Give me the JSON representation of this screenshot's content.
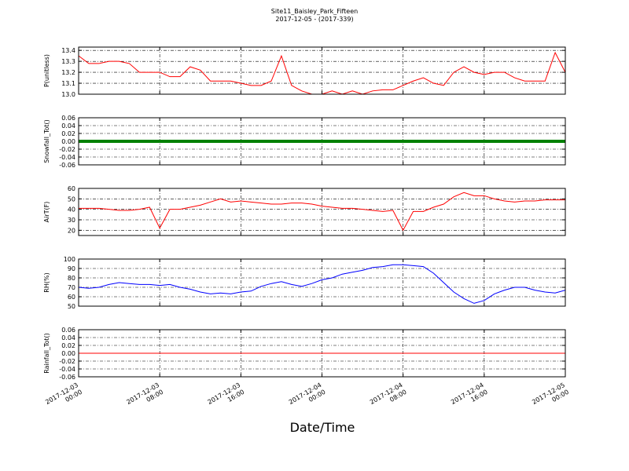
{
  "title": "Site11_Baisley_Park_Fifteen",
  "subtitle": "2017-12-05 - (2017-339)",
  "xlabel": "Date/Time",
  "chart_data": [
    {
      "type": "line",
      "ylabel": "P(unitless)",
      "color": "#ff0000",
      "linewidth": 1,
      "grid": true,
      "ylim": [
        13.0,
        13.43
      ],
      "yticks": [
        {
          "value": 13.0,
          "label": "13.0"
        },
        13.1,
        13.2,
        13.3,
        13.4
      ],
      "x": [
        "2017-12-03 00:00",
        "2017-12-03 01:00",
        "2017-12-03 02:00",
        "2017-12-03 03:00",
        "2017-12-03 04:00",
        "2017-12-03 05:00",
        "2017-12-03 06:00",
        "2017-12-03 07:00",
        "2017-12-03 08:00",
        "2017-12-03 09:00",
        "2017-12-03 10:00",
        "2017-12-03 11:00",
        "2017-12-03 12:00",
        "2017-12-03 13:00",
        "2017-12-03 14:00",
        "2017-12-03 15:00",
        "2017-12-03 16:00",
        "2017-12-03 17:00",
        "2017-12-03 18:00",
        "2017-12-03 19:00",
        "2017-12-03 20:00",
        "2017-12-03 21:00",
        "2017-12-03 22:00",
        "2017-12-03 23:00",
        "2017-12-04 00:00",
        "2017-12-04 01:00",
        "2017-12-04 02:00",
        "2017-12-04 03:00",
        "2017-12-04 04:00",
        "2017-12-04 05:00",
        "2017-12-04 06:00",
        "2017-12-04 07:00",
        "2017-12-04 08:00",
        "2017-12-04 09:00",
        "2017-12-04 10:00",
        "2017-12-04 11:00",
        "2017-12-04 12:00",
        "2017-12-04 13:00",
        "2017-12-04 14:00",
        "2017-12-04 15:00",
        "2017-12-04 16:00",
        "2017-12-04 17:00",
        "2017-12-04 18:00",
        "2017-12-04 19:00",
        "2017-12-04 20:00",
        "2017-12-04 21:00",
        "2017-12-04 22:00",
        "2017-12-04 23:00",
        "2017-12-05 00:00"
      ],
      "values": [
        13.35,
        13.28,
        13.28,
        13.3,
        13.3,
        13.28,
        13.2,
        13.2,
        13.2,
        13.16,
        13.16,
        13.25,
        13.22,
        13.12,
        13.12,
        13.12,
        13.1,
        13.08,
        13.08,
        13.12,
        13.35,
        13.08,
        13.03,
        13.0,
        13.0,
        13.03,
        13.0,
        13.03,
        13.0,
        13.03,
        13.04,
        13.04,
        13.08,
        13.12,
        13.15,
        13.1,
        13.08,
        13.2,
        13.25,
        13.2,
        13.18,
        13.2,
        13.2,
        13.15,
        13.12,
        13.12,
        13.12,
        13.38,
        13.2
      ]
    },
    {
      "type": "line",
      "ylabel": "Snowfall_Tot()",
      "color": "#008000",
      "linewidth": 4,
      "grid": true,
      "ylim": [
        -0.06,
        0.06
      ],
      "yticks": [
        -0.06,
        -0.04,
        -0.02,
        {
          "value": 0,
          "label": "0.00"
        },
        0.02,
        0.04,
        0.06
      ],
      "x": [
        "2017-12-03 00:00",
        "2017-12-03 01:00",
        "2017-12-03 02:00",
        "2017-12-03 03:00",
        "2017-12-03 04:00",
        "2017-12-03 05:00",
        "2017-12-03 06:00",
        "2017-12-03 07:00",
        "2017-12-03 08:00",
        "2017-12-03 09:00",
        "2017-12-03 10:00",
        "2017-12-03 11:00",
        "2017-12-03 12:00",
        "2017-12-03 13:00",
        "2017-12-03 14:00",
        "2017-12-03 15:00",
        "2017-12-03 16:00",
        "2017-12-03 17:00",
        "2017-12-03 18:00",
        "2017-12-03 19:00",
        "2017-12-03 20:00",
        "2017-12-03 21:00",
        "2017-12-03 22:00",
        "2017-12-03 23:00",
        "2017-12-04 00:00",
        "2017-12-04 01:00",
        "2017-12-04 02:00",
        "2017-12-04 03:00",
        "2017-12-04 04:00",
        "2017-12-04 05:00",
        "2017-12-04 06:00",
        "2017-12-04 07:00",
        "2017-12-04 08:00",
        "2017-12-04 09:00",
        "2017-12-04 10:00",
        "2017-12-04 11:00",
        "2017-12-04 12:00",
        "2017-12-04 13:00",
        "2017-12-04 14:00",
        "2017-12-04 15:00",
        "2017-12-04 16:00",
        "2017-12-04 17:00",
        "2017-12-04 18:00",
        "2017-12-04 19:00",
        "2017-12-04 20:00",
        "2017-12-04 21:00",
        "2017-12-04 22:00",
        "2017-12-04 23:00",
        "2017-12-05 00:00"
      ],
      "values": [
        0,
        0,
        0,
        0,
        0,
        0,
        0,
        0,
        0,
        0,
        0,
        0,
        0,
        0,
        0,
        0,
        0,
        0,
        0,
        0,
        0,
        0,
        0,
        0,
        0,
        0,
        0,
        0,
        0,
        0,
        0,
        0,
        0,
        0,
        0,
        0,
        0,
        0,
        0,
        0,
        0,
        0,
        0,
        0,
        0,
        0,
        0,
        0,
        0
      ]
    },
    {
      "type": "line",
      "ylabel": "AirT(F)",
      "color": "#ff0000",
      "linewidth": 1,
      "grid": true,
      "ylim": [
        15,
        60
      ],
      "yticks": [
        20,
        30,
        40,
        50,
        60
      ],
      "x": [
        "2017-12-03 00:00",
        "2017-12-03 01:00",
        "2017-12-03 02:00",
        "2017-12-03 03:00",
        "2017-12-03 04:00",
        "2017-12-03 05:00",
        "2017-12-03 06:00",
        "2017-12-03 07:00",
        "2017-12-03 08:00",
        "2017-12-03 09:00",
        "2017-12-03 10:00",
        "2017-12-03 11:00",
        "2017-12-03 12:00",
        "2017-12-03 13:00",
        "2017-12-03 14:00",
        "2017-12-03 15:00",
        "2017-12-03 16:00",
        "2017-12-03 17:00",
        "2017-12-03 18:00",
        "2017-12-03 19:00",
        "2017-12-03 20:00",
        "2017-12-03 21:00",
        "2017-12-03 22:00",
        "2017-12-03 23:00",
        "2017-12-04 00:00",
        "2017-12-04 01:00",
        "2017-12-04 02:00",
        "2017-12-04 03:00",
        "2017-12-04 04:00",
        "2017-12-04 05:00",
        "2017-12-04 06:00",
        "2017-12-04 07:00",
        "2017-12-04 08:00",
        "2017-12-04 09:00",
        "2017-12-04 10:00",
        "2017-12-04 11:00",
        "2017-12-04 12:00",
        "2017-12-04 13:00",
        "2017-12-04 14:00",
        "2017-12-04 15:00",
        "2017-12-04 16:00",
        "2017-12-04 17:00",
        "2017-12-04 18:00",
        "2017-12-04 19:00",
        "2017-12-04 20:00",
        "2017-12-04 21:00",
        "2017-12-04 22:00",
        "2017-12-04 23:00",
        "2017-12-05 00:00"
      ],
      "values": [
        41,
        41,
        41,
        40,
        39,
        39,
        40,
        42,
        22,
        40,
        40,
        42,
        44,
        47,
        50,
        47,
        48,
        47,
        46,
        45,
        45,
        46,
        46,
        45,
        43,
        42,
        41,
        41,
        40,
        39,
        38,
        39,
        20,
        38,
        38,
        42,
        45,
        52,
        56,
        53,
        53,
        50,
        48,
        47,
        48,
        48,
        49,
        49,
        49
      ]
    },
    {
      "type": "line",
      "ylabel": "RH(%)",
      "color": "#0000ff",
      "linewidth": 1,
      "grid": true,
      "ylim": [
        50,
        100
      ],
      "yticks": [
        50,
        60,
        70,
        80,
        90,
        100
      ],
      "x": [
        "2017-12-03 00:00",
        "2017-12-03 01:00",
        "2017-12-03 02:00",
        "2017-12-03 03:00",
        "2017-12-03 04:00",
        "2017-12-03 05:00",
        "2017-12-03 06:00",
        "2017-12-03 07:00",
        "2017-12-03 08:00",
        "2017-12-03 09:00",
        "2017-12-03 10:00",
        "2017-12-03 11:00",
        "2017-12-03 12:00",
        "2017-12-03 13:00",
        "2017-12-03 14:00",
        "2017-12-03 15:00",
        "2017-12-03 16:00",
        "2017-12-03 17:00",
        "2017-12-03 18:00",
        "2017-12-03 19:00",
        "2017-12-03 20:00",
        "2017-12-03 21:00",
        "2017-12-03 22:00",
        "2017-12-03 23:00",
        "2017-12-04 00:00",
        "2017-12-04 01:00",
        "2017-12-04 02:00",
        "2017-12-04 03:00",
        "2017-12-04 04:00",
        "2017-12-04 05:00",
        "2017-12-04 06:00",
        "2017-12-04 07:00",
        "2017-12-04 08:00",
        "2017-12-04 09:00",
        "2017-12-04 10:00",
        "2017-12-04 11:00",
        "2017-12-04 12:00",
        "2017-12-04 13:00",
        "2017-12-04 14:00",
        "2017-12-04 15:00",
        "2017-12-04 16:00",
        "2017-12-04 17:00",
        "2017-12-04 18:00",
        "2017-12-04 19:00",
        "2017-12-04 20:00",
        "2017-12-04 21:00",
        "2017-12-04 22:00",
        "2017-12-04 23:00",
        "2017-12-05 00:00"
      ],
      "values": [
        70,
        69,
        70,
        73,
        75,
        74,
        73,
        73,
        72,
        73,
        70,
        68,
        65,
        63,
        64,
        63,
        65,
        66,
        71,
        74,
        76,
        73,
        71,
        74,
        78,
        80,
        84,
        86,
        88,
        91,
        92,
        94,
        94,
        93,
        92,
        85,
        75,
        65,
        58,
        53,
        56,
        63,
        67,
        70,
        70,
        67,
        65,
        64,
        67
      ]
    },
    {
      "type": "line",
      "ylabel": "Rainfall_Tot()",
      "color": "#ff0000",
      "linewidth": 1,
      "grid": true,
      "ylim": [
        -0.06,
        0.06
      ],
      "yticks": [
        -0.06,
        -0.04,
        -0.02,
        {
          "value": 0,
          "label": "0.00"
        },
        0.02,
        0.04,
        0.06
      ],
      "xlim": [
        "2017-12-03 00:00",
        "2017-12-05 00:00"
      ],
      "xticks": [
        "2017-12-03 00:00",
        "2017-12-03 08:00",
        "2017-12-03 16:00",
        "2017-12-04 00:00",
        "2017-12-04 08:00",
        "2017-12-04 16:00",
        "2017-12-05 00:00"
      ],
      "x": [
        "2017-12-03 00:00",
        "2017-12-03 01:00",
        "2017-12-03 02:00",
        "2017-12-03 03:00",
        "2017-12-03 04:00",
        "2017-12-03 05:00",
        "2017-12-03 06:00",
        "2017-12-03 07:00",
        "2017-12-03 08:00",
        "2017-12-03 09:00",
        "2017-12-03 10:00",
        "2017-12-03 11:00",
        "2017-12-03 12:00",
        "2017-12-03 13:00",
        "2017-12-03 14:00",
        "2017-12-03 15:00",
        "2017-12-03 16:00",
        "2017-12-03 17:00",
        "2017-12-03 18:00",
        "2017-12-03 19:00",
        "2017-12-03 20:00",
        "2017-12-03 21:00",
        "2017-12-03 22:00",
        "2017-12-03 23:00",
        "2017-12-04 00:00",
        "2017-12-04 01:00",
        "2017-12-04 02:00",
        "2017-12-04 03:00",
        "2017-12-04 04:00",
        "2017-12-04 05:00",
        "2017-12-04 06:00",
        "2017-12-04 07:00",
        "2017-12-04 08:00",
        "2017-12-04 09:00",
        "2017-12-04 10:00",
        "2017-12-04 11:00",
        "2017-12-04 12:00",
        "2017-12-04 13:00",
        "2017-12-04 14:00",
        "2017-12-04 15:00",
        "2017-12-04 16:00",
        "2017-12-04 17:00",
        "2017-12-04 18:00",
        "2017-12-04 19:00",
        "2017-12-04 20:00",
        "2017-12-04 21:00",
        "2017-12-04 22:00",
        "2017-12-04 23:00",
        "2017-12-05 00:00"
      ],
      "values": [
        0,
        0,
        0,
        0,
        0,
        0,
        0,
        0,
        0,
        0,
        0,
        0,
        0,
        0,
        0,
        0,
        0,
        0,
        0,
        0,
        0,
        0,
        0,
        0,
        0,
        0,
        0,
        0,
        0,
        0,
        0,
        0,
        0,
        0,
        0,
        0,
        0,
        0,
        0,
        0,
        0,
        0,
        0,
        0,
        0,
        0,
        0,
        0,
        0
      ]
    }
  ]
}
